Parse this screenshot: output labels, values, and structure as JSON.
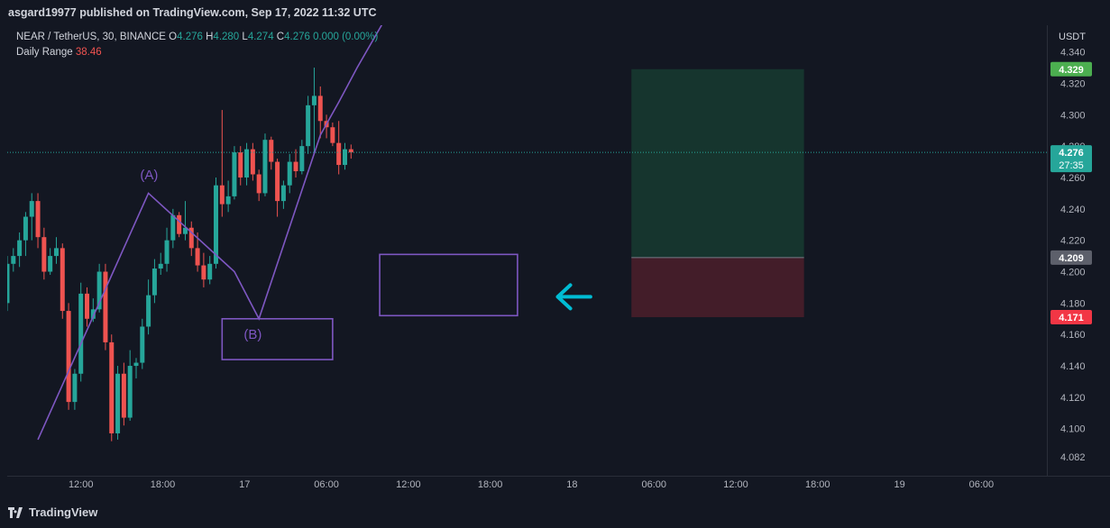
{
  "header": {
    "publish_text": "asgard19977 published on TradingView.com, Sep 17, 2022 11:32 UTC"
  },
  "legend": {
    "symbol": "NEAR / TetherUS, 30, BINANCE",
    "o_label": "O",
    "o_value": "4.276",
    "h_label": "H",
    "h_value": "4.280",
    "l_label": "L",
    "l_value": "4.274",
    "c_label": "C",
    "c_value": "4.276",
    "change": "0.000 (0.00%)",
    "indicator_name": "Daily Range",
    "indicator_value": "38.46"
  },
  "footer": {
    "logo_text": "TradingView"
  },
  "colors": {
    "background": "#131722",
    "up": "#26a69a",
    "down": "#ef5350",
    "drawing": "#7e57c2",
    "arrow": "#00bcd4"
  },
  "chart_data": {
    "type": "candlestick",
    "currency": "USDT",
    "y_ticks": [
      "4.340",
      "4.320",
      "4.300",
      "4.280",
      "4.260",
      "4.240",
      "4.220",
      "4.200",
      "4.180",
      "4.160",
      "4.140",
      "4.120",
      "4.100",
      "4.082"
    ],
    "x_ticks": [
      {
        "label": "12:00",
        "t": 0
      },
      {
        "label": "18:00",
        "t": 12
      },
      {
        "label": "17",
        "t": 24
      },
      {
        "label": "06:00",
        "t": 36
      },
      {
        "label": "12:00",
        "t": 48
      },
      {
        "label": "18:00",
        "t": 60
      },
      {
        "label": "18",
        "t": 72
      },
      {
        "label": "06:00",
        "t": 84
      },
      {
        "label": "12:00",
        "t": 96
      },
      {
        "label": "18:00",
        "t": 108
      },
      {
        "label": "19",
        "t": 120
      },
      {
        "label": "06:00",
        "t": 132
      }
    ],
    "ylim": [
      4.07,
      4.357
    ],
    "xlim": [
      -10.8,
      141.6
    ],
    "current_price": {
      "value": "4.276",
      "countdown": "27:35",
      "y": 4.276
    },
    "price_labels": [
      {
        "text": "4.329",
        "y": 4.329,
        "color": "#4caf50"
      },
      {
        "text": "4.209",
        "y": 4.209,
        "color": "#5d606b"
      },
      {
        "text": "4.171",
        "y": 4.171,
        "color": "#f23645"
      }
    ],
    "candles": [
      [
        4.234,
        4.238,
        4.224,
        4.228
      ],
      [
        4.228,
        4.23,
        4.215,
        4.22
      ],
      [
        4.22,
        4.224,
        4.2,
        4.205
      ],
      [
        4.205,
        4.212,
        4.18,
        4.185
      ],
      [
        4.185,
        4.195,
        4.143,
        4.145
      ],
      [
        4.145,
        4.184,
        4.143,
        4.18
      ],
      [
        4.18,
        4.21,
        4.175,
        4.205
      ],
      [
        4.205,
        4.215,
        4.2,
        4.21
      ],
      [
        4.21,
        4.225,
        4.203,
        4.22
      ],
      [
        4.22,
        4.238,
        4.21,
        4.235
      ],
      [
        4.235,
        4.25,
        4.22,
        4.245
      ],
      [
        4.245,
        4.25,
        4.215,
        4.222
      ],
      [
        4.222,
        4.228,
        4.195,
        4.2
      ],
      [
        4.2,
        4.215,
        4.198,
        4.21
      ],
      [
        4.21,
        4.222,
        4.205,
        4.215
      ],
      [
        4.215,
        4.218,
        4.17,
        4.175
      ],
      [
        4.175,
        4.18,
        4.112,
        4.117
      ],
      [
        4.117,
        4.138,
        4.112,
        4.135
      ],
      [
        4.135,
        4.193,
        4.13,
        4.186
      ],
      [
        4.186,
        4.19,
        4.165,
        4.17
      ],
      [
        4.17,
        4.183,
        4.168,
        4.176
      ],
      [
        4.176,
        4.205,
        4.174,
        4.2
      ],
      [
        4.2,
        4.205,
        4.15,
        4.155
      ],
      [
        4.155,
        4.16,
        4.092,
        4.097
      ],
      [
        4.097,
        4.14,
        4.093,
        4.135
      ],
      [
        4.135,
        4.142,
        4.102,
        4.107
      ],
      [
        4.107,
        4.15,
        4.105,
        4.14
      ],
      [
        4.14,
        4.145,
        4.132,
        4.142
      ],
      [
        4.142,
        4.17,
        4.138,
        4.165
      ],
      [
        4.165,
        4.195,
        4.16,
        4.185
      ],
      [
        4.185,
        4.208,
        4.18,
        4.202
      ],
      [
        4.202,
        4.212,
        4.198,
        4.205
      ],
      [
        4.205,
        4.228,
        4.2,
        4.22
      ],
      [
        4.22,
        4.24,
        4.215,
        4.236
      ],
      [
        4.236,
        4.238,
        4.222,
        4.224
      ],
      [
        4.224,
        4.245,
        4.22,
        4.228
      ],
      [
        4.228,
        4.232,
        4.21,
        4.215
      ],
      [
        4.215,
        4.225,
        4.2,
        4.204
      ],
      [
        4.204,
        4.212,
        4.19,
        4.195
      ],
      [
        4.195,
        4.21,
        4.192,
        4.205
      ],
      [
        4.205,
        4.26,
        4.202,
        4.255
      ],
      [
        4.255,
        4.303,
        4.235,
        4.243
      ],
      [
        4.243,
        4.258,
        4.238,
        4.248
      ],
      [
        4.248,
        4.28,
        4.246,
        4.276
      ],
      [
        4.276,
        4.28,
        4.255,
        4.26
      ],
      [
        4.26,
        4.282,
        4.255,
        4.278
      ],
      [
        4.278,
        4.282,
        4.258,
        4.262
      ],
      [
        4.262,
        4.265,
        4.245,
        4.25
      ],
      [
        4.25,
        4.288,
        4.248,
        4.284
      ],
      [
        4.284,
        4.286,
        4.265,
        4.27
      ],
      [
        4.27,
        4.272,
        4.235,
        4.245
      ],
      [
        4.245,
        4.258,
        4.24,
        4.255
      ],
      [
        4.255,
        4.275,
        4.25,
        4.27
      ],
      [
        4.27,
        4.278,
        4.26,
        4.264
      ],
      [
        4.264,
        4.284,
        4.262,
        4.28
      ],
      [
        4.28,
        4.312,
        4.275,
        4.306
      ],
      [
        4.306,
        4.33,
        4.275,
        4.312
      ],
      [
        4.312,
        4.318,
        4.285,
        4.296
      ],
      [
        4.296,
        4.3,
        4.285,
        4.292
      ],
      [
        4.292,
        4.295,
        4.28,
        4.282
      ],
      [
        4.282,
        4.296,
        4.262,
        4.268
      ],
      [
        4.268,
        4.282,
        4.265,
        4.278
      ],
      [
        4.278,
        4.281,
        4.272,
        4.276
      ]
    ],
    "candle_x0": -16.2,
    "candle_dx": 0.9,
    "drawings": {
      "polyline": [
        [
          -6.3,
          4.093
        ],
        [
          9.9,
          4.25
        ],
        [
          22.5,
          4.2
        ],
        [
          26.1,
          4.17
        ],
        [
          35.1,
          4.287
        ],
        [
          37.8,
          4.308
        ],
        [
          40.5,
          4.33
        ],
        [
          45.0,
          4.364
        ]
      ],
      "label_a": {
        "text": "(A)",
        "t": 10.0,
        "y": 4.252
      },
      "label_b": {
        "text": "(B)",
        "t": 25.2,
        "y": 4.16
      },
      "box_b": {
        "t1": 20.7,
        "t2": 36.9,
        "y1": 4.17,
        "y2": 4.144
      },
      "box_mid": {
        "t1": 43.8,
        "t2": 64.0,
        "y1": 4.211,
        "y2": 4.172
      },
      "arrow": {
        "t_tip": 69.9,
        "t_tail": 74.7,
        "y": 4.184
      },
      "position": {
        "t1": 80.7,
        "t2": 106.0,
        "target": 4.329,
        "entry": 4.209,
        "stop": 4.171
      }
    }
  }
}
